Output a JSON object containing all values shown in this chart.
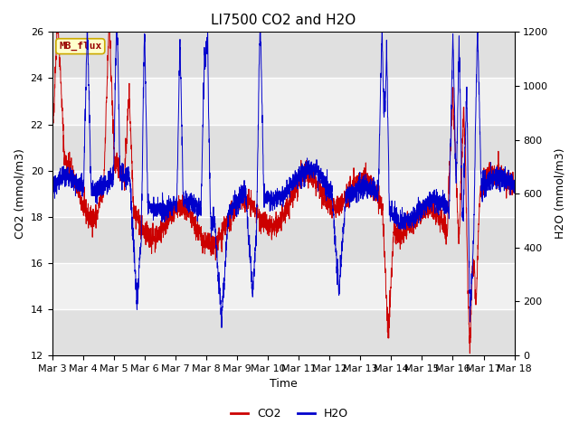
{
  "title": "LI7500 CO2 and H2O",
  "xlabel": "Time",
  "ylabel_left": "CO2 (mmol/m3)",
  "ylabel_right": "H2O (mmol/m3)",
  "co2_ylim": [
    12,
    26
  ],
  "h2o_ylim": [
    0,
    1200
  ],
  "co2_yticks": [
    12,
    14,
    16,
    18,
    20,
    22,
    24,
    26
  ],
  "h2o_yticks": [
    0,
    200,
    400,
    600,
    800,
    1000,
    1200
  ],
  "x_tick_labels": [
    "Mar 3",
    "Mar 4",
    "Mar 5",
    "Mar 6",
    "Mar 7",
    "Mar 8",
    "Mar 9",
    "Mar 10",
    "Mar 11",
    "Mar 12",
    "Mar 13",
    "Mar 14",
    "Mar 15",
    "Mar 16",
    "Mar 17",
    "Mar 18"
  ],
  "annotation_text": "MB_flux",
  "annotation_bg": "#ffffcc",
  "annotation_border": "#ccaa00",
  "annotation_text_color": "#990000",
  "co2_color": "#cc0000",
  "h2o_color": "#0000cc",
  "bg_color": "#ffffff",
  "plot_bg_light": "#f0f0f0",
  "plot_bg_dark": "#e0e0e0",
  "grid_color": "#ffffff",
  "title_fontsize": 11,
  "label_fontsize": 9,
  "tick_fontsize": 8,
  "legend_fontsize": 9,
  "num_points": 3000,
  "seed": 42,
  "figwidth": 6.4,
  "figheight": 4.8,
  "dpi": 100
}
